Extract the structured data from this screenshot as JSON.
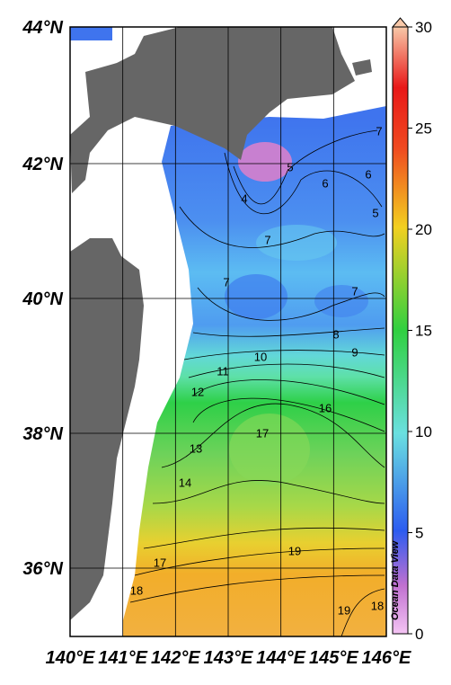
{
  "map": {
    "lat_labels": [
      "44°N",
      "42°N",
      "40°N",
      "38°N",
      "36°N"
    ],
    "lon_labels": [
      "140°E",
      "141°E",
      "142°E",
      "143°E",
      "144°E",
      "145°E",
      "146°E"
    ],
    "colorbar": {
      "range": [
        0,
        30
      ],
      "ticks": [
        0,
        5,
        10,
        15,
        20,
        25,
        30
      ]
    },
    "contour_labels": [
      "7",
      "6",
      "5",
      "5",
      "6",
      "4",
      "7",
      "7",
      "7",
      "8",
      "9",
      "10",
      "11",
      "12",
      "16",
      "17",
      "13",
      "14",
      "19",
      "17",
      "18",
      "19",
      "18"
    ],
    "credit": "Ocean Data View"
  }
}
